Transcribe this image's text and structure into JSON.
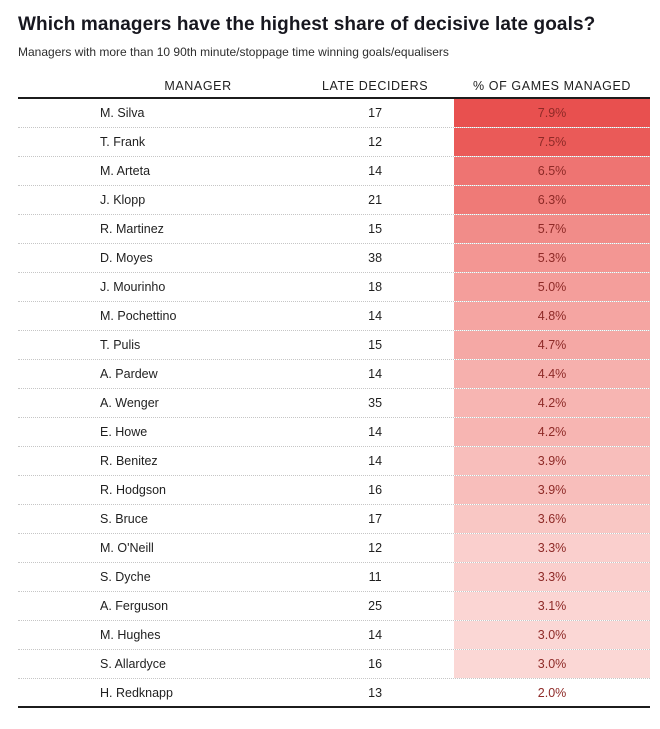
{
  "page": {
    "title": "Which managers have the highest share of decisive late goals?",
    "subtitle": "Managers with more than 10 90th minute/stoppage time winning goals/equalisers"
  },
  "chart_data": {
    "type": "heatmap",
    "title": "Which managers have the highest share of decisive late goals?",
    "subtitle": "Managers with more than 10 90th minute/stoppage time winning goals/equalisers",
    "columns": [
      "MANAGER",
      "LATE DECIDERS",
      "% OF GAMES MANAGED"
    ],
    "value_text_color": "#8e2a27",
    "max_cell_color": "#e8504f",
    "min_cell_color": "#ffffff",
    "rows": [
      {
        "manager": "M. Silva",
        "late_deciders": "17",
        "pct_label": "7.9%",
        "pct_value": 7.9,
        "cell_color": "#e8504f"
      },
      {
        "manager": "T. Frank",
        "late_deciders": "12",
        "pct_label": "7.5%",
        "pct_value": 7.5,
        "cell_color": "#ea5a58"
      },
      {
        "manager": "M. Arteta",
        "late_deciders": "14",
        "pct_label": "6.5%",
        "pct_value": 6.5,
        "cell_color": "#ee7472"
      },
      {
        "manager": "J. Klopp",
        "late_deciders": "21",
        "pct_label": "6.3%",
        "pct_value": 6.3,
        "cell_color": "#ef7a77"
      },
      {
        "manager": "R. Martinez",
        "late_deciders": "15",
        "pct_label": "5.7%",
        "pct_value": 5.7,
        "cell_color": "#f18c89"
      },
      {
        "manager": "D. Moyes",
        "late_deciders": "38",
        "pct_label": "5.3%",
        "pct_value": 5.3,
        "cell_color": "#f39693"
      },
      {
        "manager": "J. Mourinho",
        "late_deciders": "18",
        "pct_label": "5.0%",
        "pct_value": 5.0,
        "cell_color": "#f49e9b"
      },
      {
        "manager": "M. Pochettino",
        "late_deciders": "14",
        "pct_label": "4.8%",
        "pct_value": 4.8,
        "cell_color": "#f5a5a2"
      },
      {
        "manager": "T. Pulis",
        "late_deciders": "15",
        "pct_label": "4.7%",
        "pct_value": 4.7,
        "cell_color": "#f5a8a5"
      },
      {
        "manager": "A. Pardew",
        "late_deciders": "14",
        "pct_label": "4.4%",
        "pct_value": 4.4,
        "cell_color": "#f6b0ad"
      },
      {
        "manager": "A. Wenger",
        "late_deciders": "35",
        "pct_label": "4.2%",
        "pct_value": 4.2,
        "cell_color": "#f7b5b2"
      },
      {
        "manager": "E. Howe",
        "late_deciders": "14",
        "pct_label": "4.2%",
        "pct_value": 4.2,
        "cell_color": "#f7b5b2"
      },
      {
        "manager": "R. Benitez",
        "late_deciders": "14",
        "pct_label": "3.9%",
        "pct_value": 3.9,
        "cell_color": "#f8bebb"
      },
      {
        "manager": "R. Hodgson",
        "late_deciders": "16",
        "pct_label": "3.9%",
        "pct_value": 3.9,
        "cell_color": "#f8bebb"
      },
      {
        "manager": "S. Bruce",
        "late_deciders": "17",
        "pct_label": "3.6%",
        "pct_value": 3.6,
        "cell_color": "#f9c7c4"
      },
      {
        "manager": "M. O'Neill",
        "late_deciders": "12",
        "pct_label": "3.3%",
        "pct_value": 3.3,
        "cell_color": "#facfcd"
      },
      {
        "manager": "S. Dyche",
        "late_deciders": "11",
        "pct_label": "3.3%",
        "pct_value": 3.3,
        "cell_color": "#facfcd"
      },
      {
        "manager": "A. Ferguson",
        "late_deciders": "25",
        "pct_label": "3.1%",
        "pct_value": 3.1,
        "cell_color": "#fbd5d3"
      },
      {
        "manager": "M. Hughes",
        "late_deciders": "14",
        "pct_label": "3.0%",
        "pct_value": 3.0,
        "cell_color": "#fbd7d5"
      },
      {
        "manager": "S. Allardyce",
        "late_deciders": "16",
        "pct_label": "3.0%",
        "pct_value": 3.0,
        "cell_color": "#fbd7d5"
      },
      {
        "manager": "H. Redknapp",
        "late_deciders": "13",
        "pct_label": "2.0%",
        "pct_value": 2.0,
        "cell_color": "#ffffff"
      }
    ]
  }
}
